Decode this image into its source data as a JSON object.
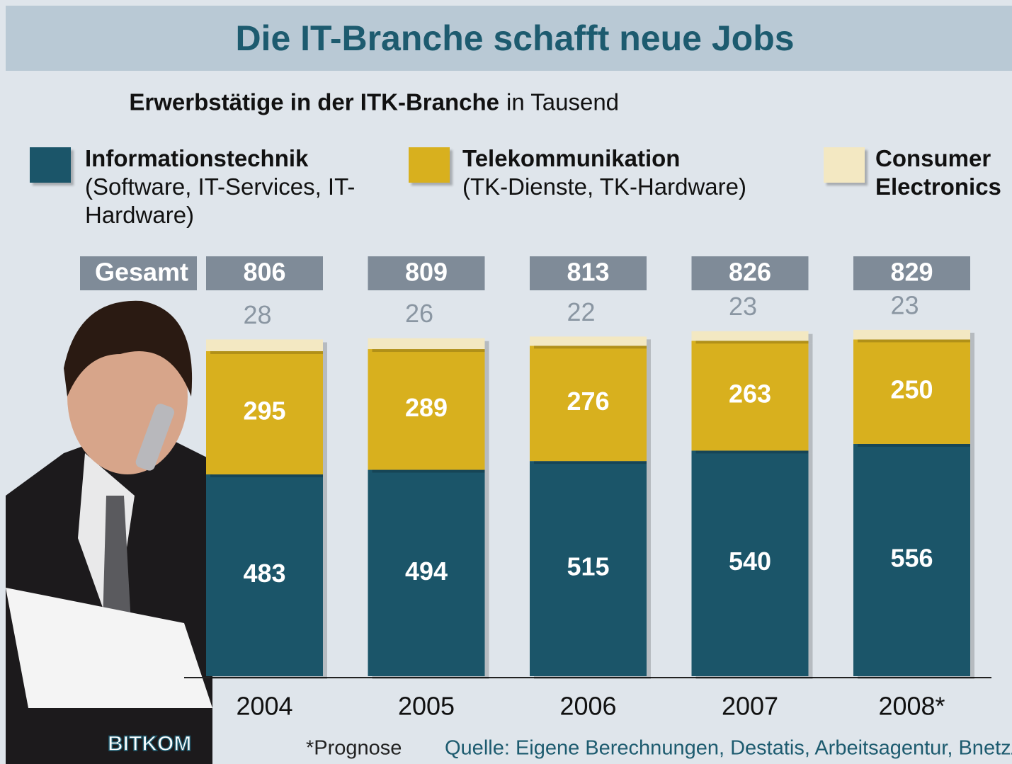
{
  "chart_data": {
    "type": "stacked-bar",
    "title": "Die IT-Branche schafft neue Jobs",
    "subtitle": "Erwerbstätige in der ITK-Branche",
    "unit": "in Tausend",
    "categories": [
      "2004",
      "2005",
      "2006",
      "2007",
      "2008*"
    ],
    "series": [
      {
        "name": "Informationstechnik",
        "description": "(Software, IT-Services, IT-Hardware)",
        "color": "#1b5569",
        "values": [
          483,
          494,
          515,
          540,
          556
        ]
      },
      {
        "name": "Telekommunikation",
        "description": "(TK-Dienste, TK-Hardware)",
        "color": "#d8b01e",
        "values": [
          295,
          289,
          276,
          263,
          250
        ]
      },
      {
        "name": "Consumer Electronics",
        "color": "#f3e8c2",
        "values": [
          28,
          26,
          22,
          23,
          23
        ]
      }
    ],
    "totals_label": "Gesamt",
    "totals": [
      806,
      809,
      813,
      826,
      829
    ],
    "footnote": "*Prognose",
    "source": "Quelle: Eigene Berechnungen, Destatis, Arbeitsagentur, BnetzA",
    "logo": "BITKOM"
  }
}
